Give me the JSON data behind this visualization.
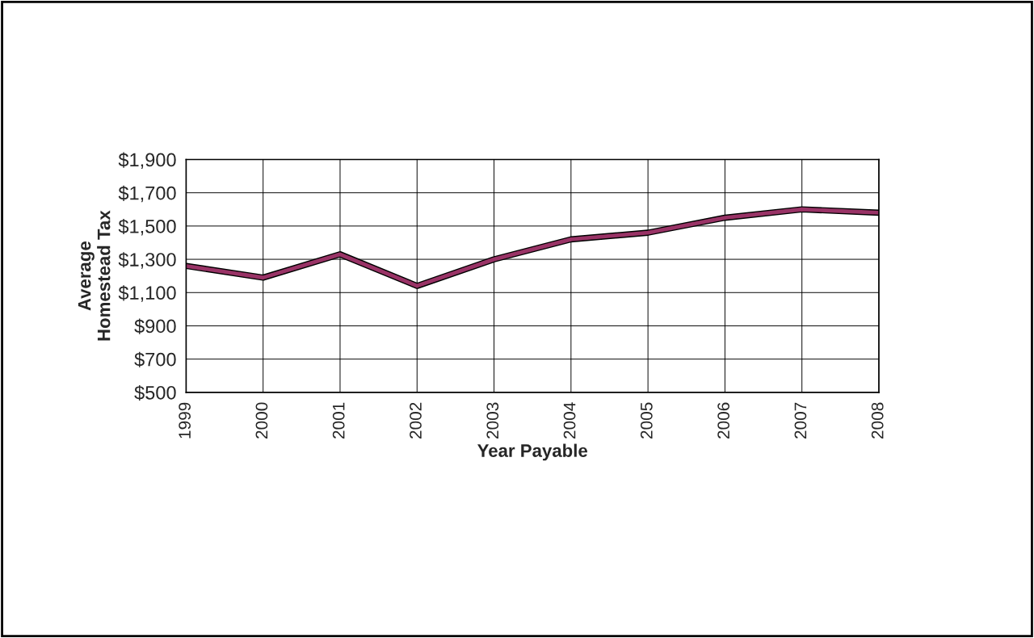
{
  "chart_data": {
    "type": "line",
    "xlabel": "Year Payable",
    "ylabel": "Average\nHomestead Tax",
    "categories": [
      "1999",
      "2000",
      "2001",
      "2002",
      "2003",
      "2004",
      "2005",
      "2006",
      "2007",
      "2008"
    ],
    "series": [
      {
        "color": "#993366",
        "values": [
          1260,
          1190,
          1330,
          1140,
          1300,
          1420,
          1460,
          1550,
          1600,
          1580
        ]
      }
    ],
    "ylim": [
      500,
      1900
    ],
    "yticks": [
      {
        "value": 500,
        "label": "$500"
      },
      {
        "value": 700,
        "label": "$700"
      },
      {
        "value": 900,
        "label": "$900"
      },
      {
        "value": 1100,
        "label": "$1,100"
      },
      {
        "value": 1300,
        "label": "$1,300"
      },
      {
        "value": 1500,
        "label": "$1,500"
      },
      {
        "value": 1700,
        "label": "$1,700"
      },
      {
        "value": 1900,
        "label": "$1,900"
      }
    ],
    "grid": true,
    "marker": "none",
    "line_style": "solid"
  }
}
